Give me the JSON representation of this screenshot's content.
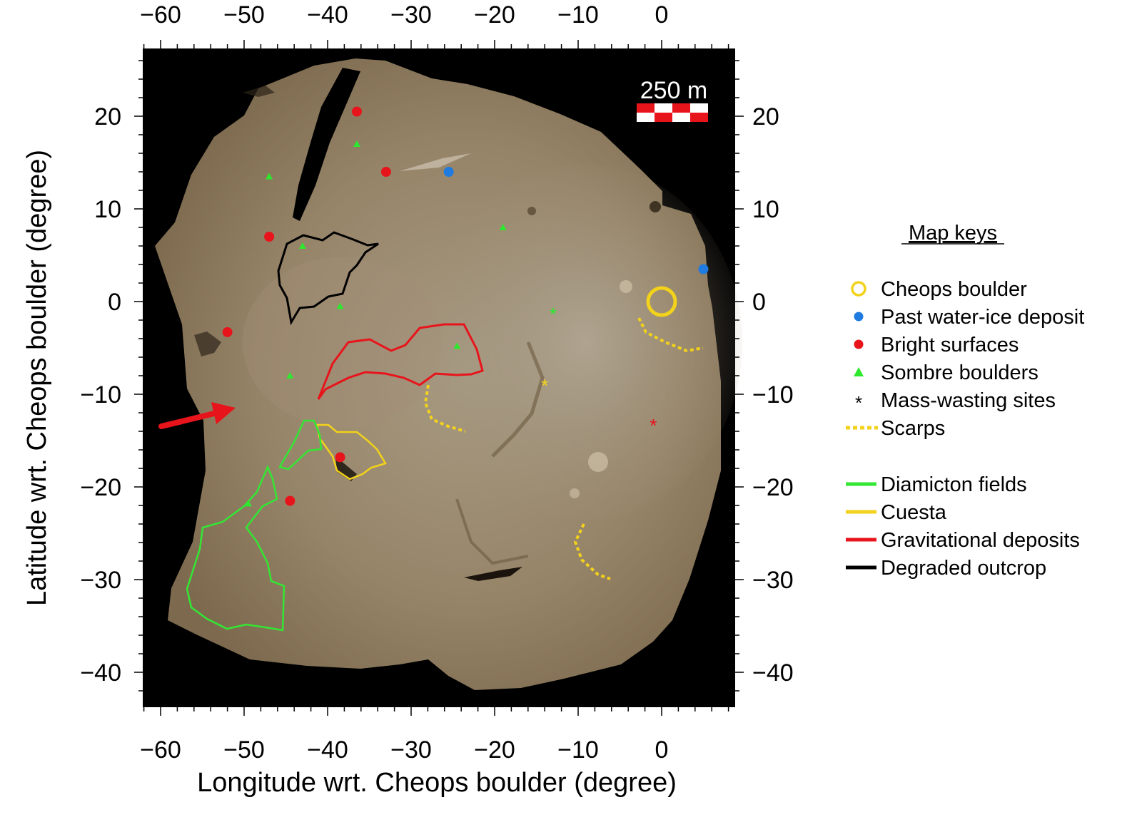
{
  "map": {
    "x_axis_title": "Longitude wrt. Cheops boulder (degree)",
    "y_axis_title": "Latitude  wrt. Cheops boulder (degree)",
    "x_ticks": [
      -60,
      -50,
      -40,
      -30,
      -20,
      -10,
      0
    ],
    "y_ticks": [
      20,
      10,
      0,
      -10,
      -20,
      -30,
      -40
    ],
    "scale_bar": {
      "label": "250 m"
    },
    "colors": {
      "background": "#000000",
      "surface": "#9a8a6e",
      "cheops": "#f2d21b",
      "water_ice": "#1f7be0",
      "bright": "#e8141b",
      "sombre": "#2ee82e",
      "scarp": "#f2d21b",
      "diamicton": "#33e633",
      "cuesta": "#f2d21b",
      "gravitational": "#e8141b",
      "degraded": "#000000"
    }
  },
  "legend": {
    "title": "Map keys",
    "items": [
      {
        "label": "Cheops boulder",
        "icon": "yellow-ring-icon"
      },
      {
        "label": "Past water-ice deposit",
        "icon": "blue-dot-icon"
      },
      {
        "label": "Bright surfaces",
        "icon": "red-dot-icon"
      },
      {
        "label": "Sombre boulders",
        "icon": "green-triangle-icon"
      },
      {
        "label": "Mass-wasting sites",
        "icon": "asterisk-icon"
      },
      {
        "label": "Scarps",
        "icon": "dotted-yellow-line-icon"
      },
      {
        "label": "Diamicton fields",
        "icon": "green-line-icon"
      },
      {
        "label": "Cuesta",
        "icon": "yellow-line-icon"
      },
      {
        "label": "Gravitational deposits",
        "icon": "red-line-icon"
      },
      {
        "label": "Degraded outcrop",
        "icon": "black-line-icon"
      }
    ]
  },
  "markers": {
    "cheops_boulder": {
      "lon": 0,
      "lat": 0
    },
    "water_ice": [
      {
        "lon": -25.5,
        "lat": 14
      },
      {
        "lon": 5,
        "lat": 3.5
      }
    ],
    "bright": [
      {
        "lon": -36.5,
        "lat": 20.5
      },
      {
        "lon": -33,
        "lat": 14
      },
      {
        "lon": -47,
        "lat": 7
      },
      {
        "lon": -52,
        "lat": -3.3
      },
      {
        "lon": -38.5,
        "lat": -16.8
      },
      {
        "lon": -44.5,
        "lat": -21.5
      }
    ],
    "sombre": [
      {
        "lon": -36.5,
        "lat": 17
      },
      {
        "lon": -47,
        "lat": 13.5
      },
      {
        "lon": -43,
        "lat": 6
      },
      {
        "lon": -19,
        "lat": 8
      },
      {
        "lon": -38.5,
        "lat": -0.5
      },
      {
        "lon": -24.5,
        "lat": -4.8
      },
      {
        "lon": -44.5,
        "lat": -8
      },
      {
        "lon": -49.5,
        "lat": -21.8
      }
    ],
    "mass_wasting": [
      {
        "lon": -13,
        "lat": -1,
        "color": "#2ee82e"
      },
      {
        "lon": -14,
        "lat": -8.7,
        "color": "#f2d21b"
      },
      {
        "lon": -1,
        "lat": -13,
        "color": "#e8141b"
      }
    ]
  }
}
